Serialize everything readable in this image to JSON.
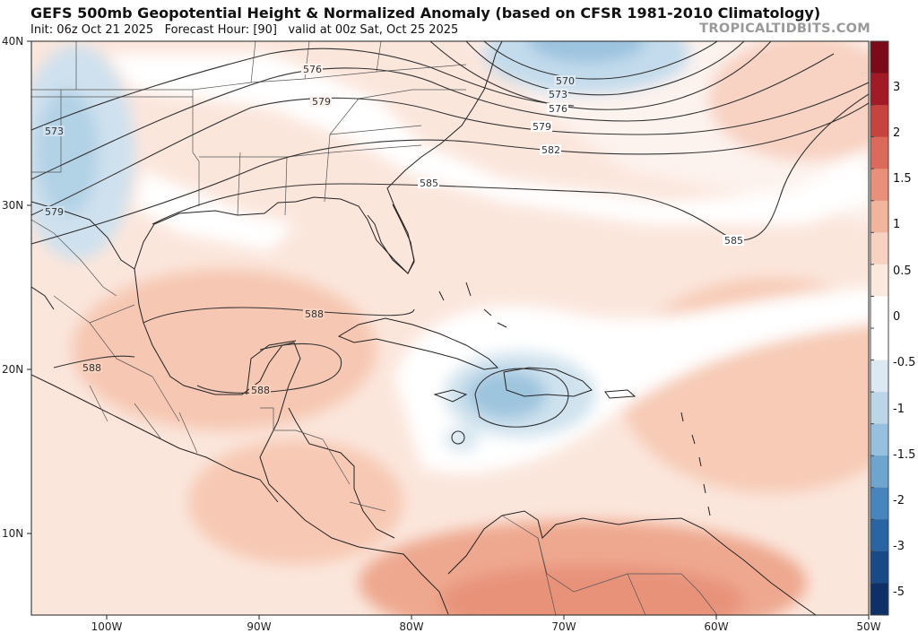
{
  "header": {
    "title": "GEFS 500mb Geopotential Height & Normalized Anomaly (based on CFSR 1981-2010 Climatology)",
    "subtitle_init": "Init: 06z Oct 21 2025",
    "subtitle_forecast": "Forecast Hour: [90]",
    "subtitle_valid": "valid at 00z Sat, Oct 25 2025",
    "watermark": "TROPICALTIDBITS.COM"
  },
  "axes": {
    "lat_labels": [
      "40N",
      "30N",
      "20N",
      "10N"
    ],
    "lon_labels": [
      "100W",
      "90W",
      "80W",
      "70W",
      "60W",
      "50W"
    ]
  },
  "contour_labels": [
    "576",
    "579",
    "573",
    "579",
    "570",
    "573",
    "576",
    "579",
    "582",
    "585",
    "585",
    "588",
    "588",
    "588"
  ],
  "colorbar": {
    "labels": [
      "3",
      "2",
      "1.5",
      "1",
      "0.5",
      "0",
      "-0.5",
      "-1",
      "-1.5",
      "-2",
      "-3",
      "-5"
    ],
    "colors": [
      "#7a0a18",
      "#a31a26",
      "#c8423f",
      "#db6a5a",
      "#e8907a",
      "#f1b49d",
      "#f7d2c2",
      "#fbe8de",
      "#ffffff",
      "#ffffff",
      "#dde9f2",
      "#bcd6e8",
      "#97c0de",
      "#6da5cf",
      "#4686bd",
      "#2a65a3",
      "#1a4a86",
      "#0e3067"
    ],
    "accent_positive": "#e8907a",
    "accent_negative": "#6da5cf"
  }
}
